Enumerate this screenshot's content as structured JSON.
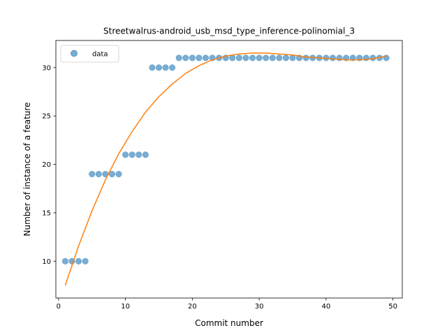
{
  "chart_data": {
    "type": "scatter",
    "title": "Streetwalrus-android_usb_msd_type_inference-polinomial_3",
    "xlabel": "Commit number",
    "ylabel": "Number of instance of a feature",
    "xlim": [
      -0.4,
      51.4
    ],
    "ylim": [
      6.2,
      32.8
    ],
    "xticks": [
      0,
      10,
      20,
      30,
      40,
      50
    ],
    "yticks": [
      10,
      15,
      20,
      25,
      30
    ],
    "grid": false,
    "legend": {
      "position": "top-left",
      "entries": [
        "data"
      ]
    },
    "colors": {
      "data": "#1f77b4",
      "fit": "#ff7f0e"
    },
    "series": [
      {
        "name": "data",
        "kind": "scatter",
        "x": [
          1,
          2,
          3,
          4,
          5,
          6,
          7,
          8,
          9,
          10,
          11,
          12,
          13,
          14,
          15,
          16,
          17,
          18,
          19,
          20,
          21,
          22,
          23,
          24,
          25,
          26,
          27,
          28,
          29,
          30,
          31,
          32,
          33,
          34,
          35,
          36,
          37,
          38,
          39,
          40,
          41,
          42,
          43,
          44,
          45,
          46,
          47,
          48,
          49
        ],
        "y": [
          10,
          10,
          10,
          10,
          19,
          19,
          19,
          19,
          19,
          21,
          21,
          21,
          21,
          30,
          30,
          30,
          30,
          31,
          31,
          31,
          31,
          31,
          31,
          31,
          31,
          31,
          31,
          31,
          31,
          31,
          31,
          31,
          31,
          31,
          31,
          31,
          31,
          31,
          31,
          31,
          31,
          31,
          31,
          31,
          31,
          31,
          31,
          31,
          31
        ]
      },
      {
        "kind": "line",
        "x": [
          1,
          3,
          5,
          7,
          9,
          11,
          13,
          15,
          17,
          19,
          21,
          23,
          25,
          27,
          29,
          31,
          33,
          35,
          37,
          39,
          41,
          43,
          45,
          47,
          49
        ],
        "y": [
          7.5,
          11.6,
          15.2,
          18.4,
          21.1,
          23.4,
          25.4,
          27.0,
          28.3,
          29.4,
          30.2,
          30.8,
          31.2,
          31.4,
          31.5,
          31.5,
          31.4,
          31.3,
          31.1,
          31.0,
          30.9,
          30.8,
          30.8,
          30.9,
          31.2
        ]
      }
    ]
  }
}
